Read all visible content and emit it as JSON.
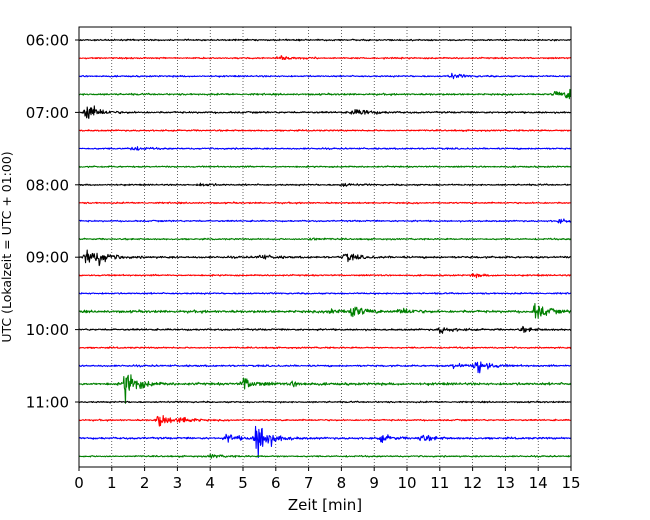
{
  "chart_data": {
    "type": "line",
    "title": "",
    "xlabel": "Zeit  [min]",
    "ylabel": "UTC (Lokalzeit = UTC + 01:00)",
    "xlim": [
      0,
      15
    ],
    "x_ticks": [
      "0",
      "1",
      "2",
      "3",
      "4",
      "5",
      "6",
      "7",
      "8",
      "9",
      "10",
      "11",
      "12",
      "13",
      "14",
      "15"
    ],
    "y_ticks": [
      {
        "label": "06:00",
        "trace_index": 0
      },
      {
        "label": "07:00",
        "trace_index": 4
      },
      {
        "label": "08:00",
        "trace_index": 8
      },
      {
        "label": "09:00",
        "trace_index": 12
      },
      {
        "label": "10:00",
        "trace_index": 16
      },
      {
        "label": "11:00",
        "trace_index": 20
      }
    ],
    "grid": "vertical dotted lines at each minute",
    "trace_interval_minutes": 15,
    "color_cycle": [
      "#000000",
      "#ff0000",
      "#0000ff",
      "#008000"
    ],
    "traces": [
      {
        "start": "06:00",
        "color": "#000000",
        "noise": 0.6,
        "events": []
      },
      {
        "start": "06:15",
        "color": "#ff0000",
        "noise": 0.6,
        "events": [
          {
            "t": 6.1,
            "amp": 2
          }
        ]
      },
      {
        "start": "06:30",
        "color": "#0000ff",
        "noise": 0.6,
        "events": [
          {
            "t": 11.3,
            "amp": 2.5
          }
        ]
      },
      {
        "start": "06:45",
        "color": "#008000",
        "noise": 0.7,
        "events": [
          {
            "t": 14.9,
            "amp": 5
          },
          {
            "t": 14.5,
            "amp": 2.5
          }
        ]
      },
      {
        "start": "07:00",
        "color": "#000000",
        "noise": 0.7,
        "events": [
          {
            "t": 0.2,
            "amp": 9
          },
          {
            "t": 8.3,
            "amp": 2.5
          },
          {
            "t": 8.6,
            "amp": 2
          }
        ]
      },
      {
        "start": "07:15",
        "color": "#ff0000",
        "noise": 0.6,
        "events": []
      },
      {
        "start": "07:30",
        "color": "#0000ff",
        "noise": 0.6,
        "events": [
          {
            "t": 1.6,
            "amp": 2
          }
        ]
      },
      {
        "start": "07:45",
        "color": "#008000",
        "noise": 0.6,
        "events": []
      },
      {
        "start": "08:00",
        "color": "#000000",
        "noise": 0.6,
        "events": [
          {
            "t": 3.7,
            "amp": 1.5
          },
          {
            "t": 8.0,
            "amp": 1.5
          }
        ]
      },
      {
        "start": "08:15",
        "color": "#ff0000",
        "noise": 0.6,
        "events": []
      },
      {
        "start": "08:30",
        "color": "#0000ff",
        "noise": 0.6,
        "events": [
          {
            "t": 14.6,
            "amp": 1.5
          }
        ]
      },
      {
        "start": "08:45",
        "color": "#008000",
        "noise": 0.6,
        "events": [
          {
            "t": 7.0,
            "amp": 1.5
          }
        ]
      },
      {
        "start": "09:00",
        "color": "#000000",
        "noise": 0.8,
        "events": [
          {
            "t": 0.2,
            "amp": 8
          },
          {
            "t": 0.6,
            "amp": 4
          },
          {
            "t": 8.1,
            "amp": 4
          },
          {
            "t": 5.5,
            "amp": 2
          }
        ]
      },
      {
        "start": "09:15",
        "color": "#ff0000",
        "noise": 0.6,
        "events": [
          {
            "t": 12.0,
            "amp": 1.5
          }
        ]
      },
      {
        "start": "09:30",
        "color": "#0000ff",
        "noise": 0.6,
        "events": []
      },
      {
        "start": "09:45",
        "color": "#008000",
        "noise": 1.0,
        "events": [
          {
            "t": 7.6,
            "amp": 3
          },
          {
            "t": 8.3,
            "amp": 6
          },
          {
            "t": 9.8,
            "amp": 3
          },
          {
            "t": 13.9,
            "amp": 8
          }
        ]
      },
      {
        "start": "10:00",
        "color": "#000000",
        "noise": 0.7,
        "events": [
          {
            "t": 11.0,
            "amp": 3
          },
          {
            "t": 13.5,
            "amp": 2
          }
        ]
      },
      {
        "start": "10:15",
        "color": "#ff0000",
        "noise": 0.6,
        "events": []
      },
      {
        "start": "10:30",
        "color": "#0000ff",
        "noise": 0.7,
        "events": [
          {
            "t": 11.4,
            "amp": 2.5
          },
          {
            "t": 12.1,
            "amp": 7
          }
        ]
      },
      {
        "start": "10:45",
        "color": "#008000",
        "noise": 1.0,
        "events": [
          {
            "t": 1.4,
            "amp": 14
          },
          {
            "t": 5.0,
            "amp": 6
          },
          {
            "t": 6.5,
            "amp": 2
          }
        ]
      },
      {
        "start": "11:00",
        "color": "#000000",
        "noise": 0.6,
        "events": []
      },
      {
        "start": "11:15",
        "color": "#ff0000",
        "noise": 0.6,
        "events": [
          {
            "t": 2.4,
            "amp": 6
          },
          {
            "t": 3.1,
            "amp": 3
          }
        ]
      },
      {
        "start": "11:30",
        "color": "#0000ff",
        "noise": 0.8,
        "events": [
          {
            "t": 4.5,
            "amp": 4
          },
          {
            "t": 5.4,
            "amp": 20
          },
          {
            "t": 9.2,
            "amp": 3
          },
          {
            "t": 10.4,
            "amp": 3
          }
        ]
      },
      {
        "start": "11:45",
        "color": "#008000",
        "noise": 0.6,
        "events": [
          {
            "t": 4.0,
            "amp": 1.5
          }
        ]
      }
    ]
  }
}
